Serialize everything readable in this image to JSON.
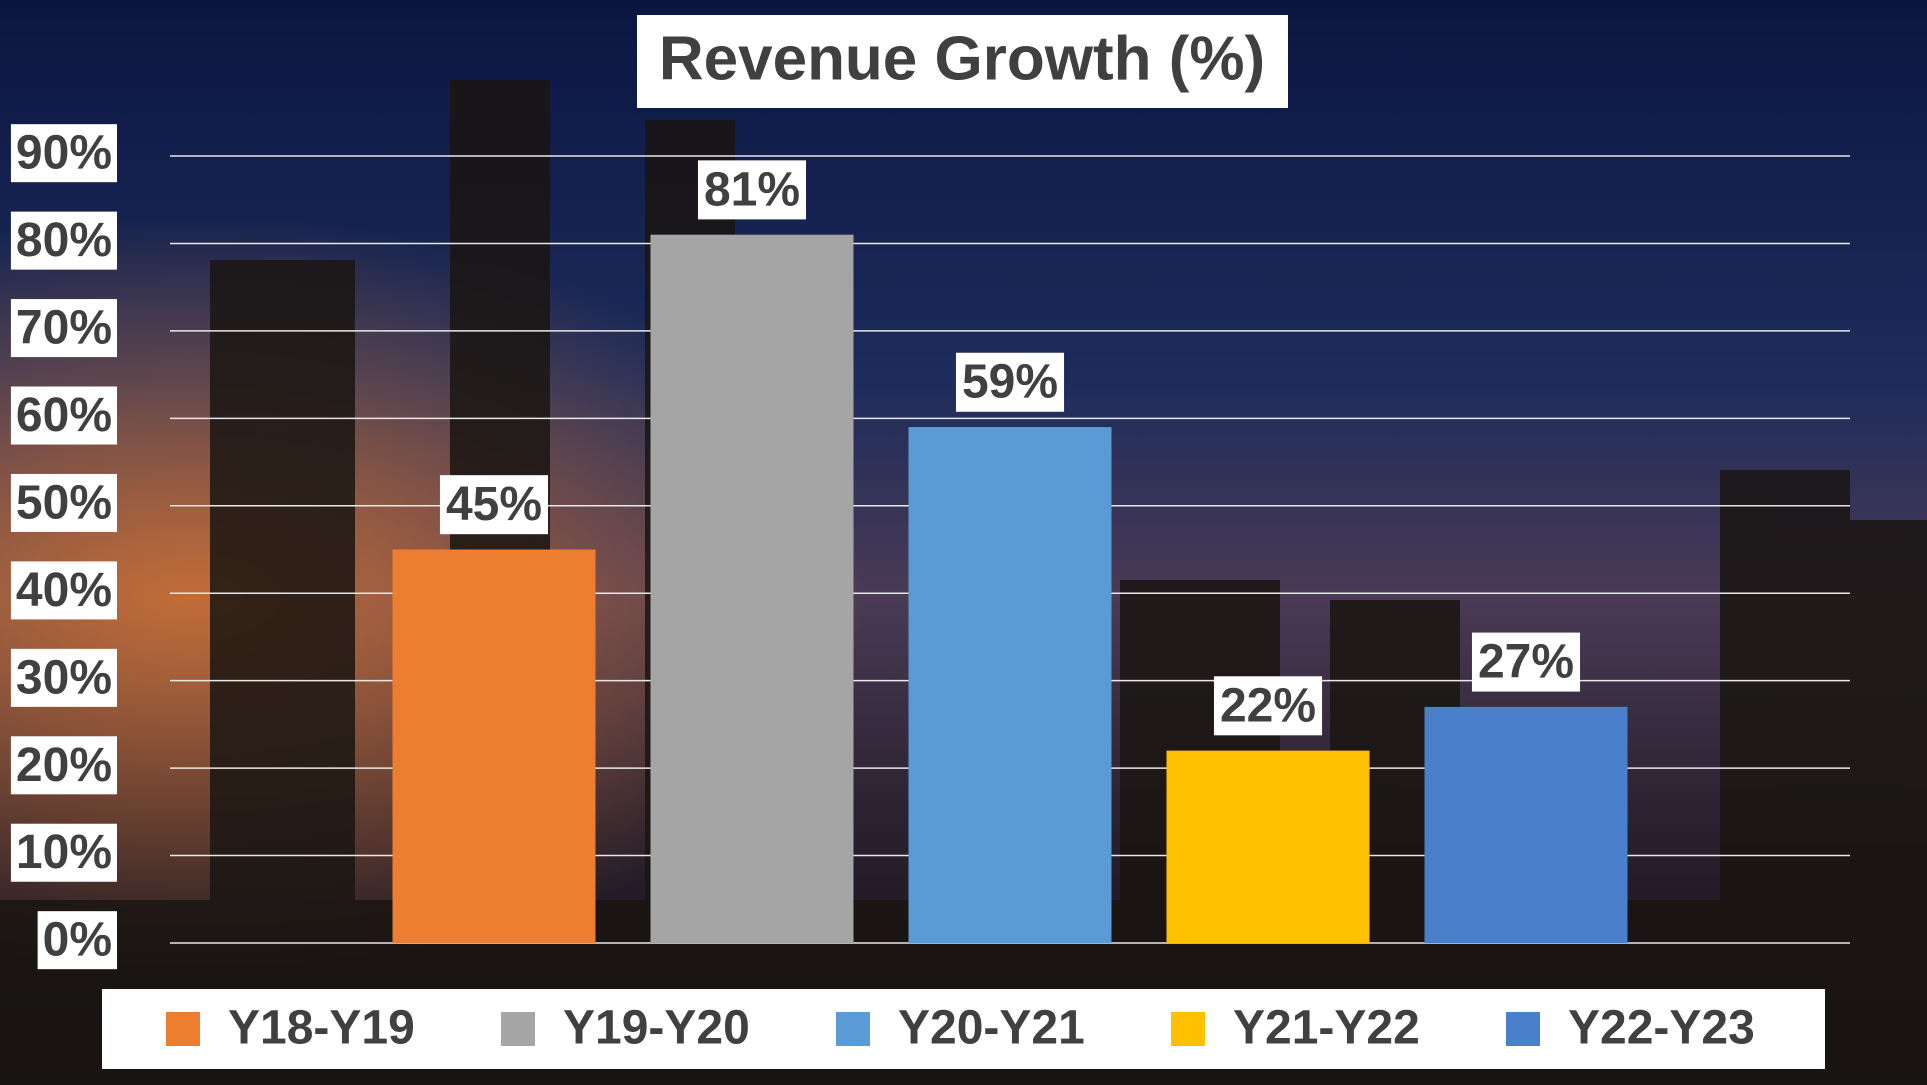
{
  "chart_data": {
    "type": "bar",
    "title": "Revenue Growth (%)",
    "series": [
      {
        "name": "Y18-Y19",
        "color": "#ED7D31",
        "values": [
          45
        ],
        "value_labels": [
          "45%"
        ]
      },
      {
        "name": "Y19-Y20",
        "color": "#A5A5A5",
        "values": [
          81
        ],
        "value_labels": [
          "81%"
        ]
      },
      {
        "name": "Y20-Y21",
        "color": "#5B9BD5",
        "values": [
          59
        ],
        "value_labels": [
          "59%"
        ]
      },
      {
        "name": "Y21-Y22",
        "color": "#FFC000",
        "values": [
          22
        ],
        "value_labels": [
          "22%"
        ]
      },
      {
        "name": "Y22-Y23",
        "color": "#4A7FCC",
        "values": [
          27
        ],
        "value_labels": [
          "27%"
        ]
      }
    ],
    "ylim": [
      0,
      90
    ],
    "yticks": [
      {
        "value": 0,
        "label": "0%"
      },
      {
        "value": 10,
        "label": "10%"
      },
      {
        "value": 20,
        "label": "20%"
      },
      {
        "value": 30,
        "label": "30%"
      },
      {
        "value": 40,
        "label": "40%"
      },
      {
        "value": 50,
        "label": "50%"
      },
      {
        "value": 60,
        "label": "60%"
      },
      {
        "value": 70,
        "label": "70%"
      },
      {
        "value": 80,
        "label": "80%"
      },
      {
        "value": 90,
        "label": "90%"
      }
    ],
    "grid": true,
    "legend": "bottom"
  }
}
